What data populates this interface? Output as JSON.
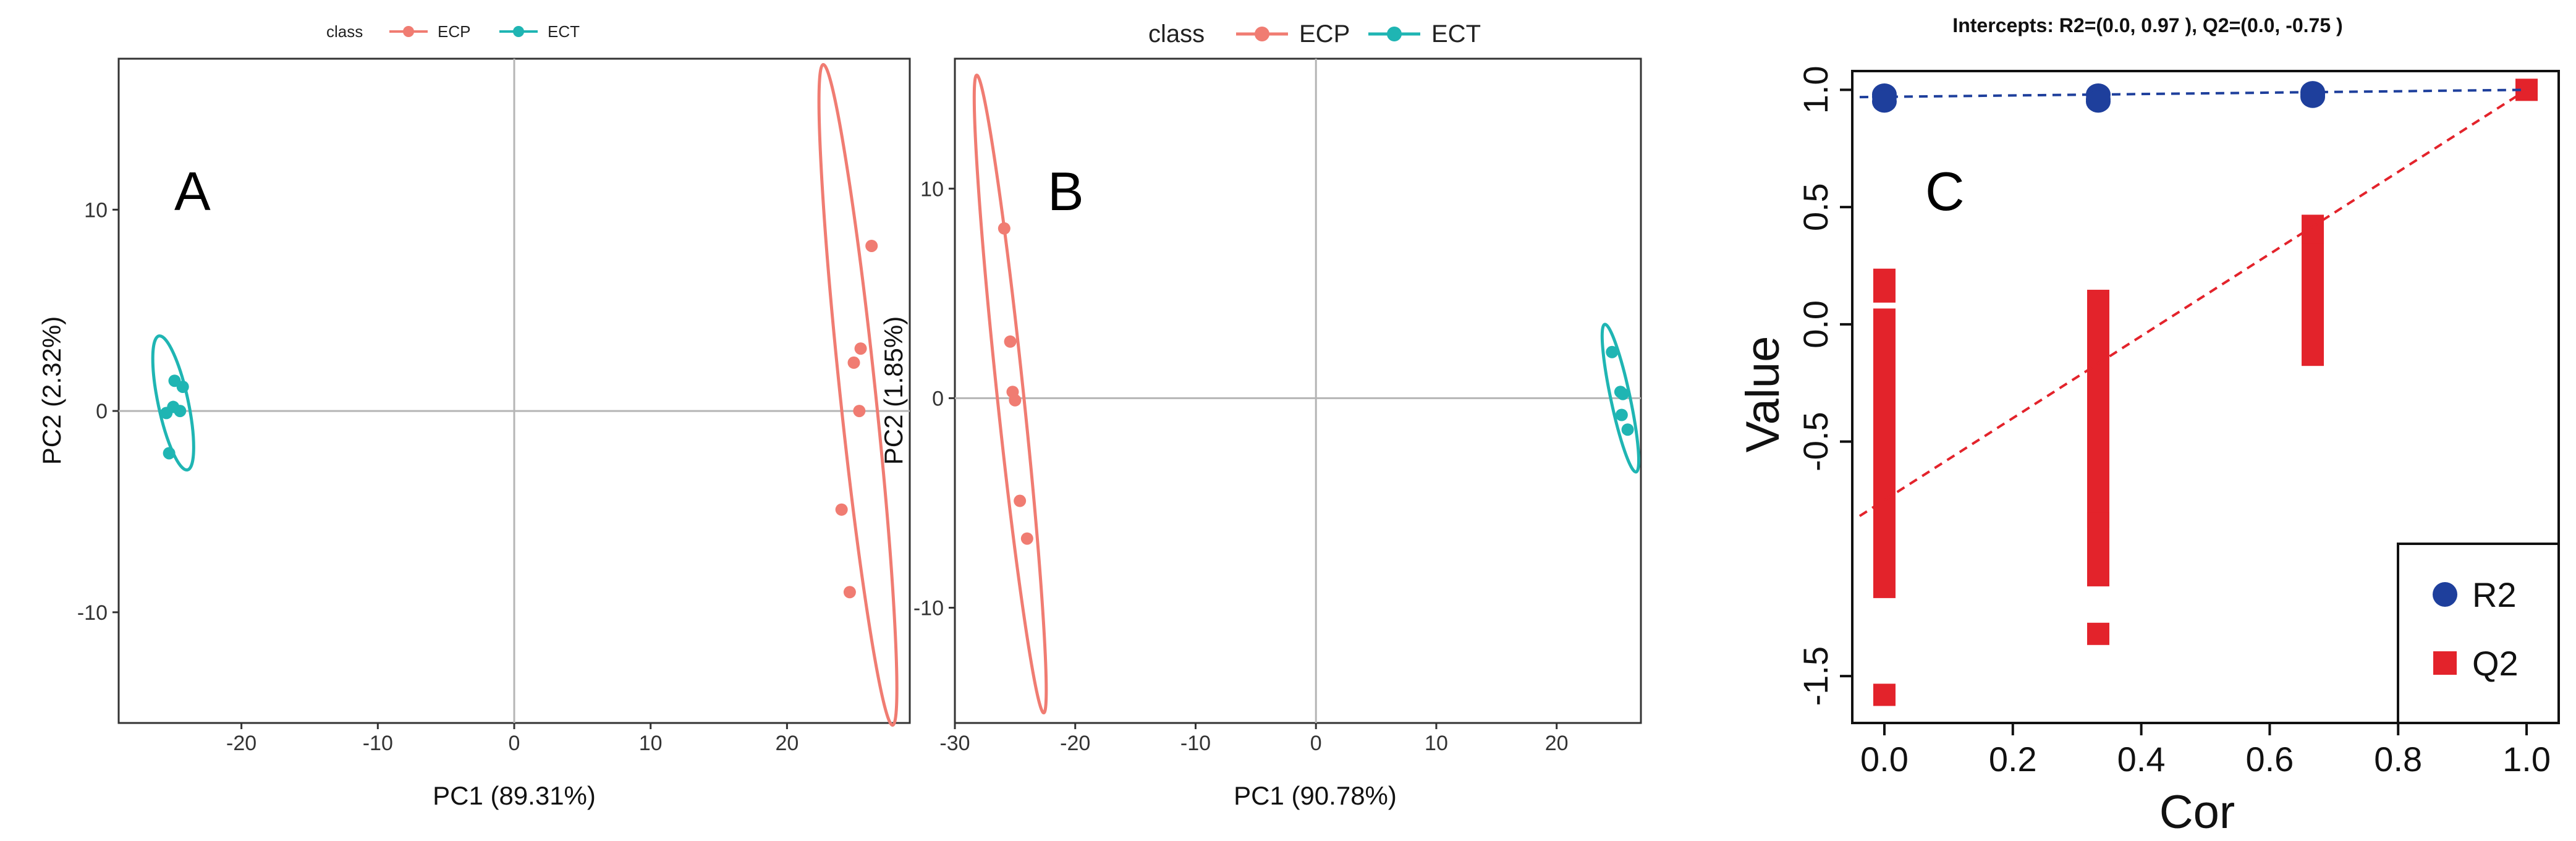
{
  "colors": {
    "ECP": "#F07C72",
    "ECT": "#1FB5B3",
    "R2": "#1E3F9C",
    "Q2": "#E3232B"
  },
  "chart_data": [
    {
      "id": "A",
      "type": "scatter",
      "panel_label": "A",
      "legend_title": "class",
      "xlabel": "PC1 (89.31%)",
      "ylabel": "PC2 (2.32%)",
      "xlim": [
        -29,
        29
      ],
      "ylim": [
        -15.5,
        17.5
      ],
      "xticks": [
        -20,
        -10,
        0,
        10,
        20
      ],
      "xtick_labels": [
        "-20",
        "-10",
        "0",
        "10",
        "20"
      ],
      "yticks": [
        -10,
        0,
        10
      ],
      "ytick_labels": [
        "-10",
        "0",
        "10"
      ],
      "series": [
        {
          "name": "ECP",
          "points": [
            [
              26.2,
              8.2
            ],
            [
              25.4,
              3.1
            ],
            [
              24.9,
              2.4
            ],
            [
              25.3,
              0.0
            ],
            [
              24.0,
              -4.9
            ],
            [
              24.6,
              -9.0
            ]
          ],
          "ellipse": {
            "cx": 25.2,
            "cy": 0.8,
            "rx": 1.3,
            "ry": 16.5,
            "angle": -6
          }
        },
        {
          "name": "ECT",
          "points": [
            [
              -24.9,
              1.5
            ],
            [
              -24.3,
              1.2
            ],
            [
              -25.0,
              0.2
            ],
            [
              -24.5,
              0.0
            ],
            [
              -25.5,
              -0.1
            ],
            [
              -25.3,
              -2.1
            ]
          ],
          "ellipse": {
            "cx": -25.0,
            "cy": 0.4,
            "rx": 1.1,
            "ry": 3.4,
            "angle": -12
          }
        }
      ]
    },
    {
      "id": "B",
      "type": "scatter",
      "panel_label": "B",
      "legend_title": "class",
      "xlabel": "PC1 (90.78%)",
      "ylabel": "PC2 (1.85%)",
      "xlim": [
        -30,
        27
      ],
      "ylim": [
        -15.5,
        16.2
      ],
      "xticks": [
        -30,
        -20,
        -10,
        0,
        10,
        20
      ],
      "xtick_labels": [
        "-30",
        "-20",
        "-10",
        "0",
        "10",
        "20"
      ],
      "yticks": [
        -10,
        0,
        10
      ],
      "ytick_labels": [
        "-10",
        "0",
        "10"
      ],
      "series": [
        {
          "name": "ECP",
          "points": [
            [
              -25.9,
              8.1
            ],
            [
              -25.4,
              2.7
            ],
            [
              -25.2,
              0.3
            ],
            [
              -25.0,
              -0.1
            ],
            [
              -24.6,
              -4.9
            ],
            [
              -24.0,
              -6.7
            ]
          ],
          "ellipse": {
            "cx": -25.4,
            "cy": 0.2,
            "rx": 1.1,
            "ry": 15.3,
            "angle": -6
          }
        },
        {
          "name": "ECT",
          "points": [
            [
              24.6,
              2.2
            ],
            [
              25.3,
              0.3
            ],
            [
              25.5,
              0.2
            ],
            [
              25.4,
              -0.8
            ],
            [
              25.9,
              -1.5
            ]
          ],
          "ellipse": {
            "cx": 25.3,
            "cy": 0.0,
            "rx": 0.8,
            "ry": 3.6,
            "angle": -12
          }
        }
      ]
    },
    {
      "id": "C",
      "type": "scatter",
      "panel_label": "C",
      "title": "Intercepts: R2=(0.0, 0.97 ), Q2=(0.0, -0.75 )",
      "xlabel": "Cor",
      "ylabel": "Value",
      "xlim": [
        -0.05,
        1.05
      ],
      "ylim": [
        -1.7,
        1.08
      ],
      "xticks": [
        0.0,
        0.2,
        0.4,
        0.6,
        0.8,
        1.0
      ],
      "xtick_labels": [
        "0.0",
        "0.2",
        "0.4",
        "0.6",
        "0.8",
        "1.0"
      ],
      "yticks": [
        -1.5,
        -0.5,
        0.0,
        0.5,
        1.0
      ],
      "ytick_labels": [
        "-1.5",
        "-0.5",
        "0.0",
        "0.5",
        "1.0"
      ],
      "legend": [
        "R2",
        "Q2"
      ],
      "R2": {
        "x": [
          0.0,
          0.0,
          0.0,
          0.333,
          0.333,
          0.333,
          0.667,
          0.667,
          0.667,
          1.0
        ],
        "y": [
          0.98,
          0.97,
          0.95,
          0.98,
          0.96,
          0.95,
          0.99,
          0.98,
          0.97,
          1.0
        ]
      },
      "Q2": {
        "bars": [
          {
            "x": 0.0,
            "from": -1.12,
            "to": 0.02
          },
          {
            "x": 0.0,
            "from": 0.14,
            "to": 0.19
          },
          {
            "x": 0.333,
            "from": -0.82,
            "to": 0.1
          },
          {
            "x": 0.333,
            "from": -1.07,
            "to": -0.85
          },
          {
            "x": 0.667,
            "from": -0.13,
            "to": 0.36
          },
          {
            "x": 0.667,
            "from": 0.39,
            "to": 0.42
          }
        ],
        "points": [
          [
            0.0,
            -1.58
          ],
          [
            0.333,
            -1.32
          ],
          [
            1.0,
            1.0
          ]
        ]
      },
      "fit_lines": [
        {
          "name": "R2",
          "from": [
            0.0,
            0.97
          ],
          "to": [
            1.0,
            1.0
          ]
        },
        {
          "name": "Q2",
          "from": [
            0.0,
            -0.75
          ],
          "to": [
            1.0,
            1.0
          ]
        }
      ]
    }
  ]
}
